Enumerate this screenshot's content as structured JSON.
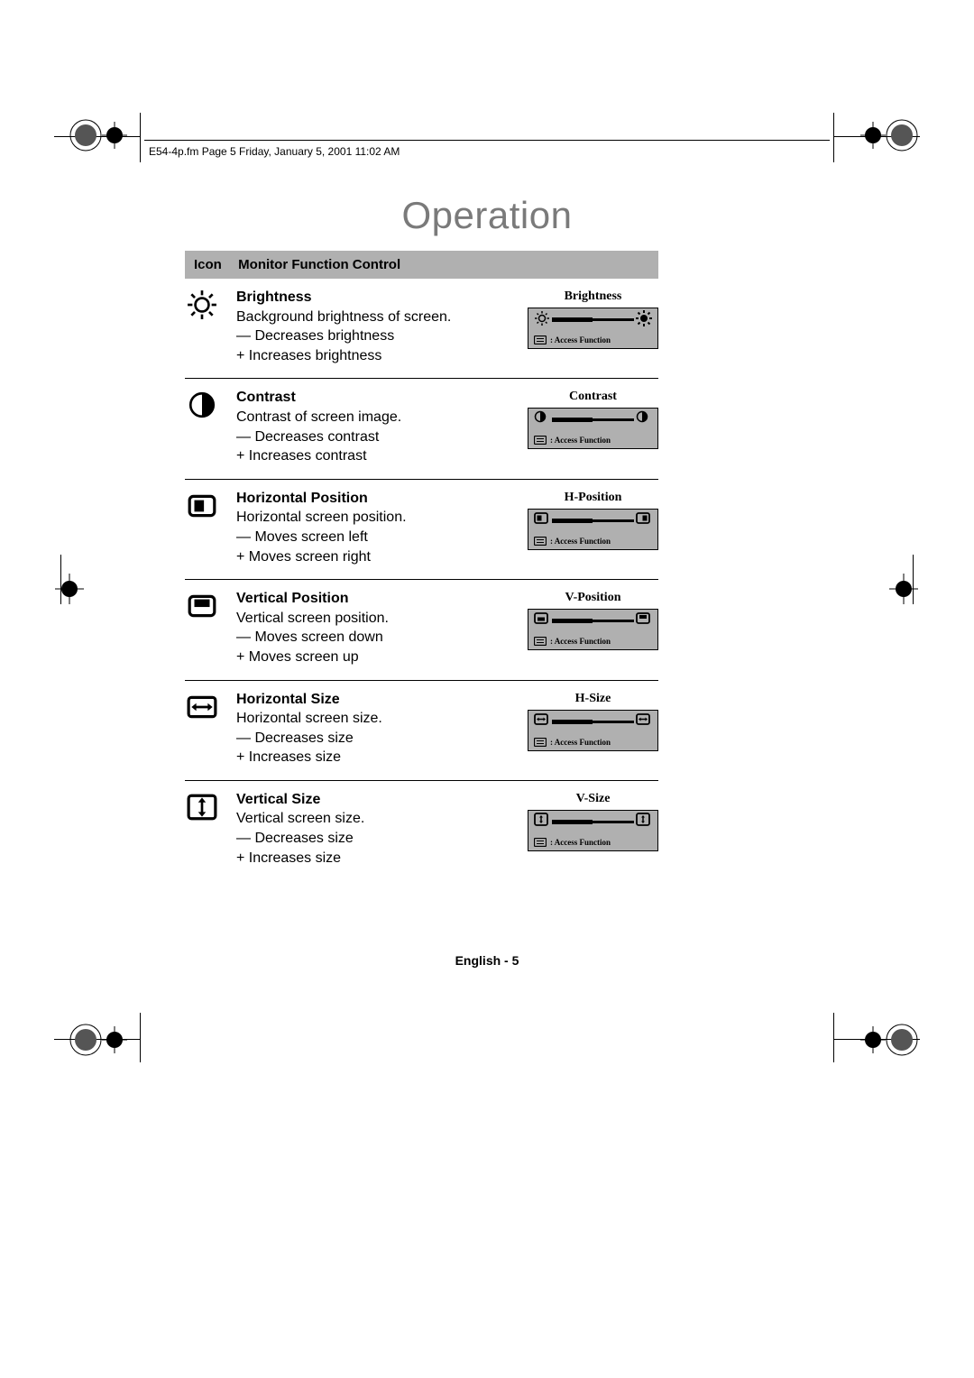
{
  "header_text": "E54-4p.fm  Page 5  Friday, January 5, 2001   11:02 AM",
  "page_title": "Operation",
  "table_header_icon": "Icon",
  "table_header_control": "Monitor Function Control",
  "access_label": ":  Access Function",
  "footer": "English - 5",
  "colors": {
    "header_bg": "#b0b0b0",
    "preview_bg": "#b0b0b0",
    "title_gray": "#7a7a7a"
  },
  "rows": [
    {
      "icon": "brightness",
      "title": "Brightness",
      "desc": "Background brightness of screen.",
      "minus": "— Decreases brightness",
      "plus": "+ Increases brightness",
      "preview_title": "Brightness",
      "preview_icon_left": "sun-small",
      "preview_icon_right": "sun-big"
    },
    {
      "icon": "contrast",
      "title": "Contrast",
      "desc": "Contrast of screen image.",
      "minus": "— Decreases contrast",
      "plus": "+ Increases contrast",
      "preview_title": "Contrast",
      "preview_icon_left": "contrast-small",
      "preview_icon_right": "contrast-small"
    },
    {
      "icon": "h-position",
      "title": "Horizontal Position",
      "desc": "Horizontal screen position.",
      "minus": "— Moves screen left",
      "plus": "+ Moves screen right",
      "preview_title": "H-Position",
      "preview_icon_left": "hpos-left",
      "preview_icon_right": "hpos-right"
    },
    {
      "icon": "v-position",
      "title": "Vertical Position",
      "desc": "Vertical screen position.",
      "minus": "— Moves screen down",
      "plus": "+ Moves screen up",
      "preview_title": "V-Position",
      "preview_icon_left": "vpos-down",
      "preview_icon_right": "vpos-up"
    },
    {
      "icon": "h-size",
      "title": "Horizontal Size",
      "desc": "Horizontal screen size.",
      "minus": "—  Decreases size",
      "plus": "+ Increases size",
      "preview_title": "H-Size",
      "preview_icon_left": "hsize-small",
      "preview_icon_right": "hsize-small"
    },
    {
      "icon": "v-size",
      "title": "Vertical Size",
      "desc": "Vertical screen size.",
      "minus": "— Decreases size",
      "plus": "+ Increases size",
      "preview_title": "V-Size",
      "preview_icon_left": "vsize-small",
      "preview_icon_right": "vsize-small"
    }
  ]
}
